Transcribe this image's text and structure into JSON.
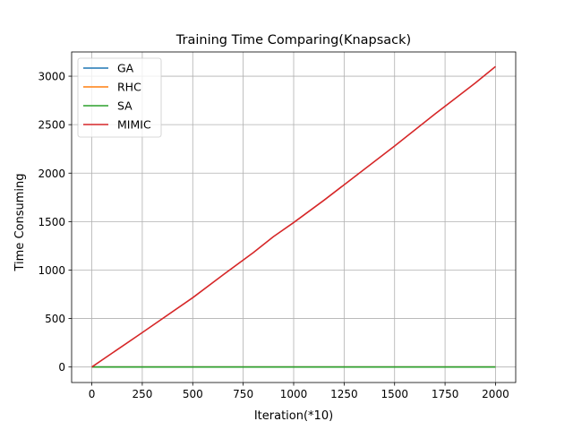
{
  "chart_data": {
    "type": "line",
    "title": "Training Time Comparing(Knapsack)",
    "xlabel": "Iteration(*10)",
    "ylabel": "Time Consuming",
    "xlim": [
      -100,
      2100
    ],
    "ylim": [
      -160,
      3250
    ],
    "xticks": [
      0,
      250,
      500,
      750,
      1000,
      1250,
      1500,
      1750,
      2000
    ],
    "yticks": [
      0,
      500,
      1000,
      1500,
      2000,
      2500,
      3000
    ],
    "grid": true,
    "legend_position": "top-left",
    "series": [
      {
        "name": "GA",
        "color": "#1f77b4",
        "x": [
          0,
          250,
          500,
          750,
          1000,
          1250,
          1500,
          1750,
          2000
        ],
        "y": [
          0,
          0,
          0,
          0,
          0,
          0,
          0,
          0,
          0
        ]
      },
      {
        "name": "RHC",
        "color": "#ff7f0e",
        "x": [
          0,
          250,
          500,
          750,
          1000,
          1250,
          1500,
          1750,
          2000
        ],
        "y": [
          0,
          0,
          0,
          0,
          0,
          0,
          0,
          0,
          0
        ]
      },
      {
        "name": "SA",
        "color": "#2ca02c",
        "x": [
          0,
          250,
          500,
          750,
          1000,
          1250,
          1500,
          1750,
          2000
        ],
        "y": [
          0,
          0,
          0,
          0,
          0,
          0,
          0,
          0,
          0
        ]
      },
      {
        "name": "MIMIC",
        "color": "#d62728",
        "x": [
          0,
          250,
          500,
          650,
          800,
          900,
          1000,
          1150,
          1300,
          1500,
          1700,
          1900,
          2000
        ],
        "y": [
          0,
          355,
          715,
          950,
          1180,
          1345,
          1490,
          1720,
          1960,
          2280,
          2610,
          2930,
          3100
        ]
      }
    ]
  }
}
